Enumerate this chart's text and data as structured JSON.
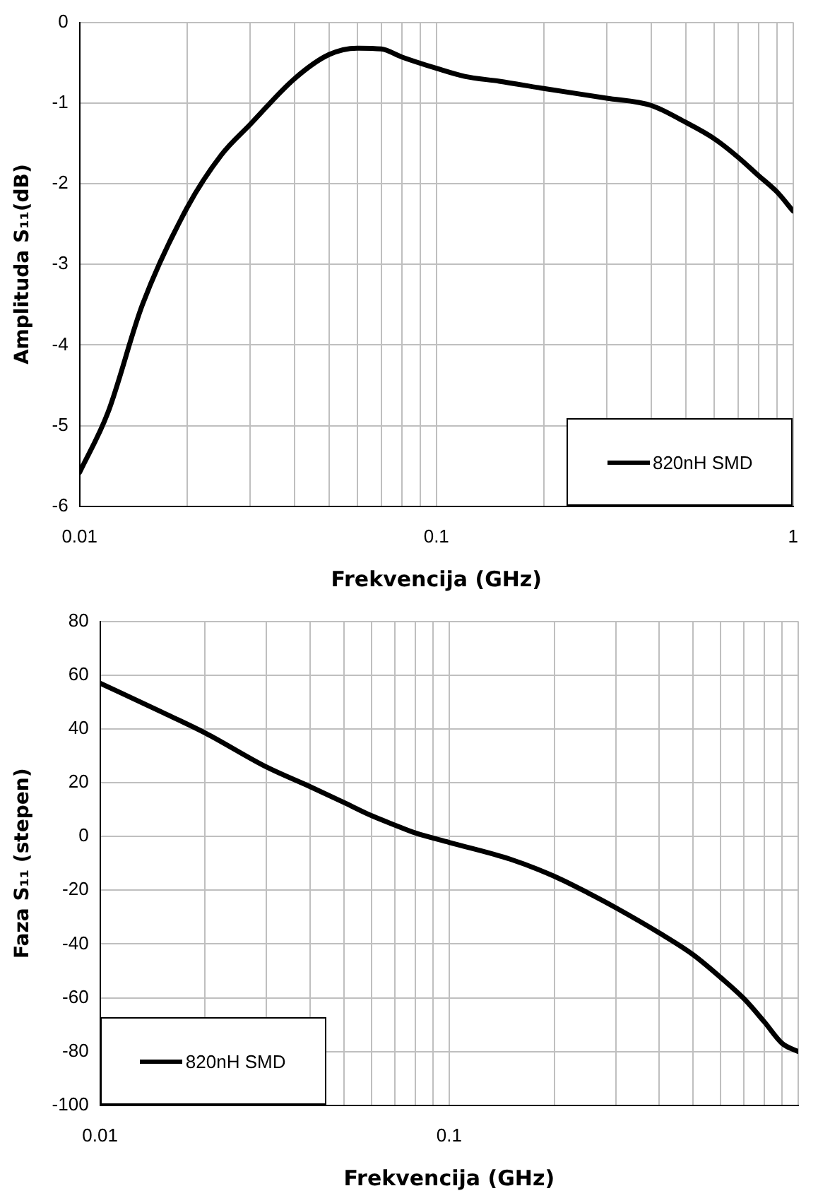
{
  "chart_data": [
    {
      "type": "line",
      "xlabel": "Frekvencija (GHz)",
      "ylabel": "Amplituda S₁₁(dB)",
      "log": "x",
      "grid": true,
      "legend": "bottom right",
      "marker": "none",
      "line_style": "solid",
      "xlim": [
        0.01,
        1
      ],
      "ylim": [
        -6,
        0
      ],
      "xticks": [
        {
          "value": 0.01,
          "label": "0.01"
        },
        {
          "value": 0.02,
          "label": null
        },
        {
          "value": 0.03,
          "label": null
        },
        {
          "value": 0.04,
          "label": null
        },
        {
          "value": 0.05,
          "label": null
        },
        {
          "value": 0.06,
          "label": null
        },
        {
          "value": 0.07,
          "label": null
        },
        {
          "value": 0.08,
          "label": null
        },
        {
          "value": 0.09,
          "label": null
        },
        {
          "value": 0.1,
          "label": "0.1"
        },
        {
          "value": 0.2,
          "label": null
        },
        {
          "value": 0.3,
          "label": null
        },
        {
          "value": 0.4,
          "label": null
        },
        {
          "value": 0.5,
          "label": null
        },
        {
          "value": 0.6,
          "label": null
        },
        {
          "value": 0.7,
          "label": null
        },
        {
          "value": 0.8,
          "label": null
        },
        {
          "value": 0.9,
          "label": null
        },
        {
          "value": 1,
          "label": "1"
        }
      ],
      "yticks": [
        -6,
        -5,
        -4,
        -3,
        -2,
        -1,
        0
      ],
      "x": [
        0.01,
        0.012,
        0.015,
        0.02,
        0.025,
        0.03,
        0.04,
        0.05,
        0.06,
        0.07,
        0.08,
        0.1,
        0.12,
        0.15,
        0.2,
        0.3,
        0.4,
        0.5,
        0.6,
        0.7,
        0.8,
        0.9,
        1
      ],
      "series": [
        {
          "name": "820nH SMD",
          "color": "#000000",
          "values": [
            -5.58,
            -4.84,
            -3.5,
            -2.3,
            -1.64,
            -1.27,
            -0.7,
            -0.4,
            -0.32,
            -0.33,
            -0.43,
            -0.57,
            -0.67,
            -0.73,
            -0.82,
            -0.94,
            -1.03,
            -1.24,
            -1.44,
            -1.67,
            -1.9,
            -2.1,
            -2.34
          ]
        }
      ]
    },
    {
      "type": "line",
      "xlabel": "Frekvencija (GHz)",
      "ylabel": "Faza S₁₁ (stepen)",
      "log": "x",
      "grid": true,
      "legend": "bottom left",
      "marker": "none",
      "line_style": "solid",
      "xlim": [
        0.01,
        1
      ],
      "ylim": [
        -100,
        80
      ],
      "xticks": [
        {
          "value": 0.01,
          "label": "0.01"
        },
        {
          "value": 0.02,
          "label": null
        },
        {
          "value": 0.03,
          "label": null
        },
        {
          "value": 0.04,
          "label": null
        },
        {
          "value": 0.05,
          "label": null
        },
        {
          "value": 0.06,
          "label": null
        },
        {
          "value": 0.07,
          "label": null
        },
        {
          "value": 0.08,
          "label": null
        },
        {
          "value": 0.09,
          "label": null
        },
        {
          "value": 0.1,
          "label": "0.1"
        },
        {
          "value": 0.2,
          "label": null
        },
        {
          "value": 0.3,
          "label": null
        },
        {
          "value": 0.4,
          "label": null
        },
        {
          "value": 0.5,
          "label": null
        },
        {
          "value": 0.6,
          "label": null
        },
        {
          "value": 0.7,
          "label": null
        },
        {
          "value": 0.8,
          "label": null
        },
        {
          "value": 0.9,
          "label": null
        },
        {
          "value": 1,
          "label": null
        }
      ],
      "yticks": [
        -100,
        -80,
        -60,
        -40,
        -20,
        0,
        20,
        40,
        60,
        80
      ],
      "x": [
        0.01,
        0.015,
        0.02,
        0.03,
        0.04,
        0.05,
        0.06,
        0.07,
        0.08,
        0.1,
        0.15,
        0.2,
        0.25,
        0.3,
        0.4,
        0.5,
        0.6,
        0.7,
        0.8,
        0.9,
        1
      ],
      "series": [
        {
          "name": "820nH SMD",
          "color": "#000000",
          "values": [
            57,
            46.3,
            38.5,
            25.8,
            18.5,
            12.6,
            7.7,
            4.2,
            1.3,
            -2.2,
            -8.5,
            -14.8,
            -21,
            -26.5,
            -35.9,
            -44,
            -52.5,
            -60.4,
            -69,
            -77,
            -80
          ]
        }
      ]
    }
  ]
}
